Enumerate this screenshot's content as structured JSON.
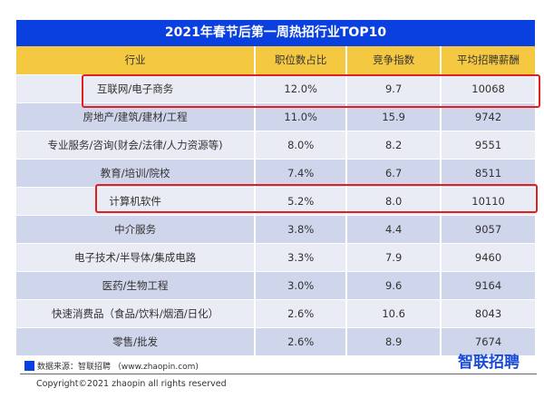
{
  "title": "2021年春节后第一周热招行业TOP10",
  "headers": [
    "行业",
    "职位数占比",
    "竞争指数",
    "平均招聘薪酬"
  ],
  "rows": [
    [
      "互联网/电子商务",
      "12.0%",
      "9.7",
      "10068"
    ],
    [
      "房地产/建筑/建材/工程",
      "11.0%",
      "15.9",
      "9742"
    ],
    [
      "专业服务/咨询(财会/法律/人力资源等)",
      "8.0%",
      "8.2",
      "9551"
    ],
    [
      "教育/培训/院校",
      "7.4%",
      "6.7",
      "8511"
    ],
    [
      "计算机软件",
      "5.2%",
      "8.0",
      "10110"
    ],
    [
      "中介服务",
      "3.8%",
      "4.4",
      "9057"
    ],
    [
      "电子技术/半导体/集成电路",
      "3.3%",
      "7.9",
      "9460"
    ],
    [
      "医药/生物工程",
      "3.0%",
      "9.6",
      "9164"
    ],
    [
      "快速消费品（食品/饮料/烟酒/日化）",
      "2.6%",
      "10.6",
      "8043"
    ],
    [
      "零售/批发",
      "2.6%",
      "8.9",
      "7674"
    ]
  ],
  "source": "数据来源：智联招聘 （www.zhaopin.com)",
  "logo": "智联招聘",
  "copyright": "Copyright©2021 zhaopin all rights reserved"
}
